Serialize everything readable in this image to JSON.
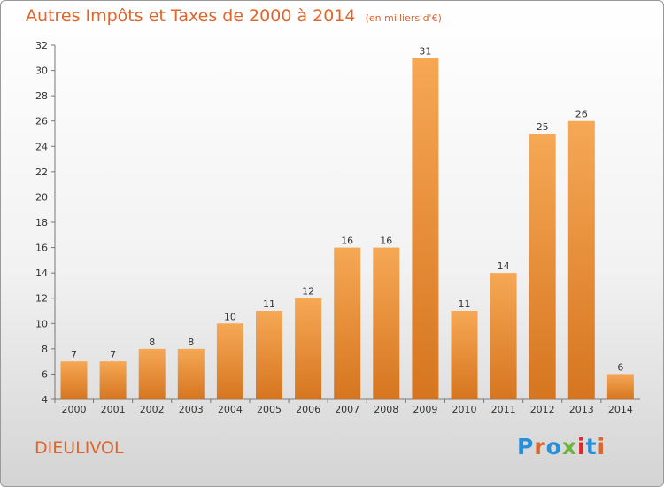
{
  "header": {
    "title": "Autres Impôts et Taxes de 2000 à 2014",
    "subtitle": "(en milliers d'€)"
  },
  "footer": {
    "town": "DIEULIVOL",
    "logo_text": "Proxiti"
  },
  "colors": {
    "title": "#e0652a",
    "bar_light": "#f6a855",
    "bar_dark": "#d67520",
    "logo": [
      "#2b8fd8",
      "#e0652a",
      "#2b8fd8",
      "#6db33f",
      "#e02828",
      "#2b8fd8",
      "#e0652a"
    ]
  },
  "chart_data": {
    "type": "bar",
    "title": "Autres Impôts et Taxes de 2000 à 2014",
    "subtitle": "(en milliers d'€)",
    "xlabel": "",
    "ylabel": "",
    "categories": [
      "2000",
      "2001",
      "2002",
      "2003",
      "2004",
      "2005",
      "2006",
      "2007",
      "2008",
      "2009",
      "2010",
      "2011",
      "2012",
      "2013",
      "2014"
    ],
    "values": [
      7,
      7,
      8,
      8,
      10,
      11,
      12,
      16,
      16,
      31,
      11,
      14,
      25,
      26,
      6
    ],
    "ylim": [
      4,
      32
    ],
    "yticks": [
      4,
      6,
      8,
      10,
      12,
      14,
      16,
      18,
      20,
      22,
      24,
      26,
      28,
      30,
      32
    ],
    "grid": false,
    "data_labels": true
  }
}
